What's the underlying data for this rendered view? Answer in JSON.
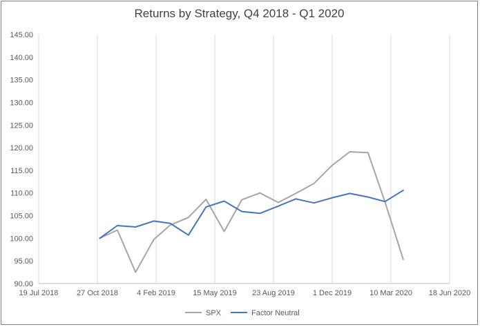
{
  "chart_data": {
    "type": "line",
    "title": "Returns by Strategy, Q4 2018  - Q1 2020",
    "xlabel": "",
    "ylabel": "",
    "ylim": [
      90,
      145
    ],
    "yticks": [
      "90.00",
      "95.00",
      "100.00",
      "105.00",
      "110.00",
      "115.00",
      "120.00",
      "125.00",
      "130.00",
      "135.00",
      "140.00",
      "145.00"
    ],
    "xlim": [
      "2018-07-19",
      "2020-06-18"
    ],
    "xticks": [
      "19 Jul 2018",
      "27 Oct 2018",
      "4 Feb 2019",
      "15 May 2019",
      "23 Aug 2019",
      "1 Dec 2019",
      "10 Mar 2020",
      "18 Jun 2020"
    ],
    "xtick_dates": [
      "2018-07-19",
      "2018-10-27",
      "2019-02-04",
      "2019-05-15",
      "2019-08-23",
      "2019-12-01",
      "2020-03-10",
      "2020-06-18"
    ],
    "grid": "vertical",
    "legend": "bottom",
    "series": [
      {
        "name": "SPX",
        "color": "#a5a5a5",
        "x": [
          "2018-10-31",
          "2018-11-30",
          "2018-12-31",
          "2019-01-31",
          "2019-02-28",
          "2019-03-31",
          "2019-04-30",
          "2019-05-31",
          "2019-06-30",
          "2019-07-31",
          "2019-08-31",
          "2019-09-30",
          "2019-10-31",
          "2019-11-30",
          "2019-12-31",
          "2020-01-31",
          "2020-02-29",
          "2020-03-31"
        ],
        "y": [
          100.0,
          101.8,
          92.5,
          99.7,
          102.9,
          104.6,
          108.6,
          101.5,
          108.5,
          110.0,
          107.9,
          109.9,
          112.1,
          116.0,
          119.1,
          118.9,
          108.0,
          95.3
        ]
      },
      {
        "name": "Factor Neutral",
        "color": "#4472c4",
        "x": [
          "2018-10-31",
          "2018-11-30",
          "2018-12-31",
          "2019-01-31",
          "2019-02-28",
          "2019-03-31",
          "2019-04-30",
          "2019-05-31",
          "2019-06-30",
          "2019-07-31",
          "2019-08-31",
          "2019-09-30",
          "2019-10-31",
          "2019-11-30",
          "2019-12-31",
          "2020-01-31",
          "2020-02-29",
          "2020-03-31"
        ],
        "y": [
          100.0,
          102.8,
          102.5,
          103.8,
          103.3,
          100.7,
          106.9,
          108.2,
          105.9,
          105.5,
          107.1,
          108.7,
          107.8,
          108.9,
          109.9,
          109.1,
          108.1,
          110.6
        ]
      }
    ]
  }
}
